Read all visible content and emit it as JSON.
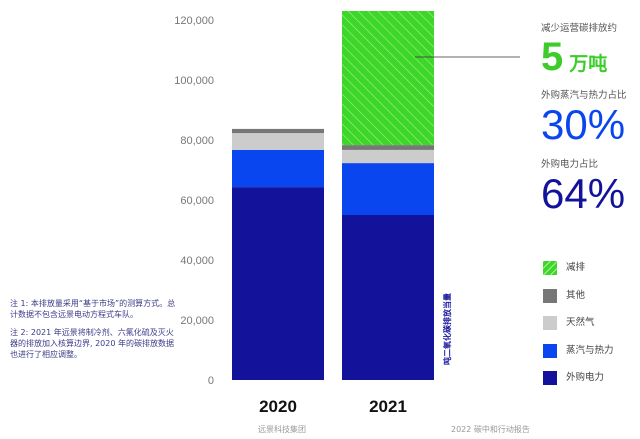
{
  "chart_data": {
    "type": "bar",
    "stacked": true,
    "categories": [
      "2020",
      "2021"
    ],
    "ylabel": "吨二氧化碳排放当量",
    "ylim": [
      0,
      120000
    ],
    "yticks": [
      "0",
      "20,000",
      "40,000",
      "60,000",
      "80,000",
      "100,000",
      "120,000"
    ],
    "grid": false,
    "legend_position": "right",
    "series": [
      {
        "name": "外购电力",
        "color": "#12129a",
        "values": [
          64300,
          55000
        ]
      },
      {
        "name": "蒸汽与热力",
        "color": "#0a46f0",
        "values": [
          12400,
          17300
        ]
      },
      {
        "name": "天然气",
        "color": "#cccccc",
        "values": [
          5600,
          4400
        ]
      },
      {
        "name": "其他",
        "color": "#777777",
        "values": [
          1400,
          1600
        ]
      },
      {
        "name": "减排",
        "color": "#3dd62a",
        "pattern": "hatched",
        "values": [
          0,
          44700
        ]
      }
    ]
  },
  "kpis": [
    {
      "label": "减少运营碳排放约",
      "value": "5",
      "unit": "万吨",
      "color": "#3dcc2a"
    },
    {
      "label": "外购蒸汽与热力占比",
      "value": "30%",
      "color": "#0a46f0"
    },
    {
      "label": "外购电力占比",
      "value": "64%",
      "color": "#12129a"
    }
  ],
  "notes": [
    "注 1: 本排放量采用“基于市场”的测算方式。总计数据不包含远景电动方程式车队。",
    "注 2: 2021 年远景将制冷剂、六氟化硫及灭火器的排放加入核算边界, 2020 年的碳排放数据也进行了相应调整。"
  ],
  "footer": {
    "left": "远景科技集团",
    "right": "2022 碳中和行动报告"
  }
}
